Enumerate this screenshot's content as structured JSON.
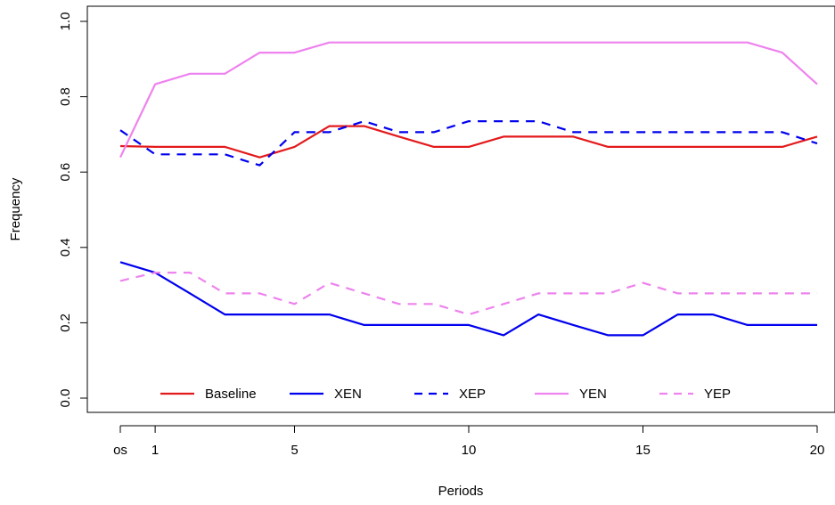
{
  "chart_data": {
    "type": "line",
    "title": "",
    "xlabel": "Periods",
    "ylabel": "Frequency",
    "x": [
      0,
      1,
      2,
      3,
      4,
      5,
      6,
      7,
      8,
      9,
      10,
      11,
      12,
      13,
      14,
      15,
      16,
      17,
      18,
      19,
      20
    ],
    "xticks": [
      {
        "x": 0,
        "label": "os"
      },
      {
        "x": 1,
        "label": "1"
      },
      {
        "x": 5,
        "label": "5"
      },
      {
        "x": 10,
        "label": "10"
      },
      {
        "x": 15,
        "label": "15"
      },
      {
        "x": 20,
        "label": "20"
      }
    ],
    "yticks": [
      "0.0",
      "0.2",
      "0.4",
      "0.6",
      "0.8",
      "1.0"
    ],
    "ylim": [
      0,
      1
    ],
    "xlim": [
      0,
      20
    ],
    "grid": false,
    "legend_position": "bottom-inside",
    "series": [
      {
        "name": "Baseline",
        "color": "#e31a1c",
        "dash": "solid",
        "values": [
          0.669,
          0.667,
          0.667,
          0.667,
          0.639,
          0.667,
          0.722,
          0.722,
          0.694,
          0.667,
          0.667,
          0.694,
          0.694,
          0.694,
          0.667,
          0.667,
          0.667,
          0.667,
          0.667,
          0.667,
          0.694
        ]
      },
      {
        "name": "XEN",
        "color": "#0000ee",
        "dash": "solid",
        "values": [
          0.361,
          0.333,
          0.278,
          0.222,
          0.222,
          0.222,
          0.222,
          0.194,
          0.194,
          0.194,
          0.194,
          0.167,
          0.222,
          0.194,
          0.167,
          0.167,
          0.222,
          0.222,
          0.194,
          0.194,
          0.194
        ]
      },
      {
        "name": "XEP",
        "color": "#0000ee",
        "dash": "dashed",
        "values": [
          0.711,
          0.647,
          0.647,
          0.647,
          0.618,
          0.706,
          0.706,
          0.735,
          0.706,
          0.706,
          0.735,
          0.735,
          0.735,
          0.706,
          0.706,
          0.706,
          0.706,
          0.706,
          0.706,
          0.706,
          0.676
        ]
      },
      {
        "name": "YEN",
        "color": "#ee82ee",
        "dash": "solid",
        "values": [
          0.639,
          0.833,
          0.861,
          0.861,
          0.917,
          0.917,
          0.944,
          0.944,
          0.944,
          0.944,
          0.944,
          0.944,
          0.944,
          0.944,
          0.944,
          0.944,
          0.944,
          0.944,
          0.944,
          0.917,
          0.833
        ]
      },
      {
        "name": "YEP",
        "color": "#ee82ee",
        "dash": "dashed",
        "values": [
          0.311,
          0.333,
          0.333,
          0.278,
          0.278,
          0.25,
          0.306,
          0.278,
          0.25,
          0.25,
          0.222,
          0.25,
          0.278,
          0.278,
          0.278,
          0.306,
          0.278,
          0.278,
          0.278,
          0.278,
          0.278
        ]
      }
    ]
  }
}
